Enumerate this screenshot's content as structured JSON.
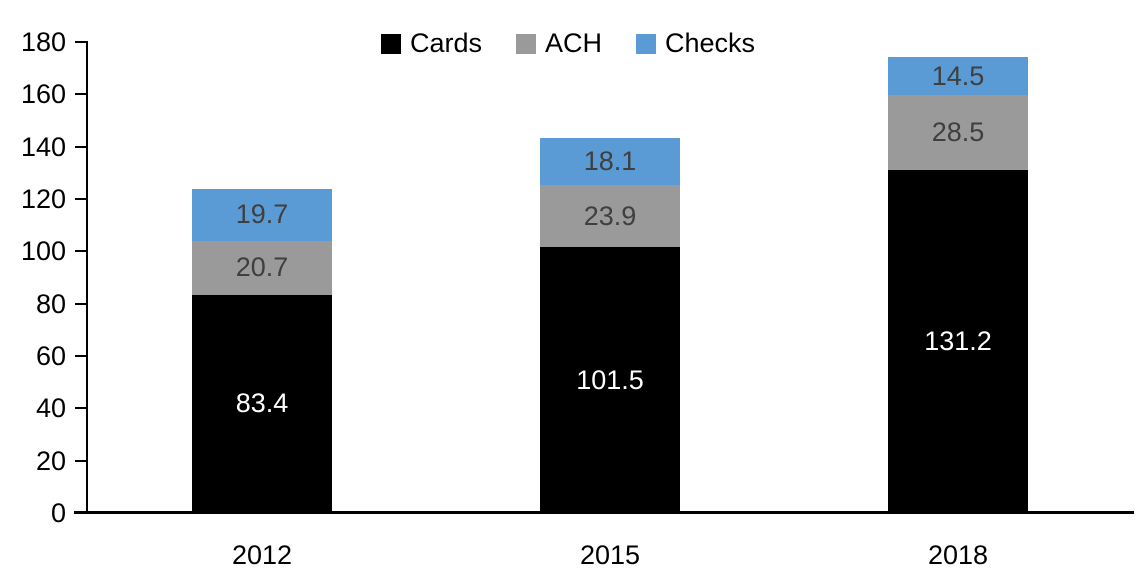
{
  "chart_data": {
    "type": "bar",
    "stacked": true,
    "title": "",
    "xlabel": "",
    "ylabel": "",
    "categories": [
      "2012",
      "2015",
      "2018"
    ],
    "series": [
      {
        "name": "Cards",
        "color": "#000000",
        "label_color": "#ffffff",
        "values": [
          83.4,
          101.5,
          131.2
        ]
      },
      {
        "name": "ACH",
        "color": "#9a9a9a",
        "label_color": "#3f3f3f",
        "values": [
          20.7,
          23.9,
          28.5
        ]
      },
      {
        "name": "Checks",
        "color": "#5b9bd5",
        "label_color": "#3f3f3f",
        "values": [
          19.7,
          18.1,
          14.5
        ]
      }
    ],
    "totals": [
      123.8,
      143.5,
      174.2
    ],
    "ylim": [
      0,
      180
    ],
    "yticks": [
      0,
      20,
      40,
      60,
      80,
      100,
      120,
      140,
      160,
      180
    ],
    "value_label_decimals": 1,
    "grid": false,
    "legend_position": "top",
    "legend_items": [
      "Cards",
      "ACH",
      "Checks"
    ],
    "axis_color": "#000000",
    "background_color": "#ffffff"
  }
}
